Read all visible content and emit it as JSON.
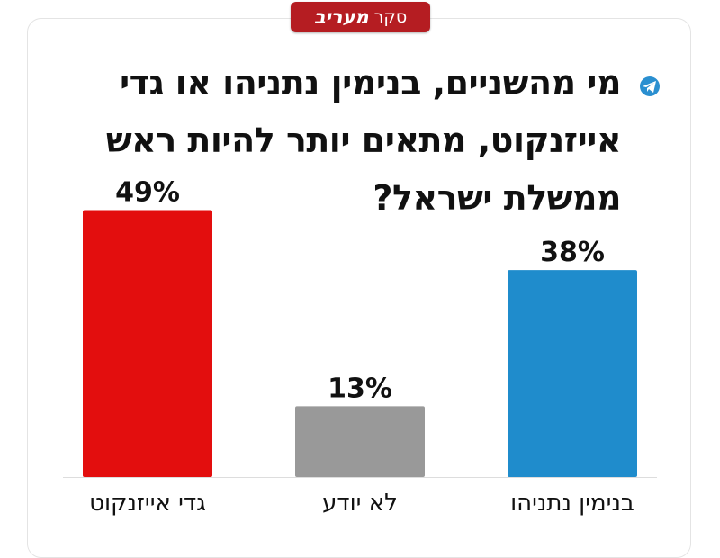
{
  "badge": {
    "prefix": "סקר",
    "brand": "מעריב"
  },
  "title": "מי מהשניים, בנימין נתניהו או גדי אייזנקוט, מתאים יותר להיות ראש ממשלת ישראל?",
  "colors": {
    "red": "#e30e0e",
    "gray": "#999999",
    "blue": "#1f8ccc",
    "badge": "#b51d22"
  },
  "icon": "telegram-icon",
  "chart_data": {
    "type": "bar",
    "categories": [
      "גדי אייזנקוט",
      "לא יודע",
      "בנימין נתניהו"
    ],
    "values": [
      49,
      13,
      38
    ],
    "value_labels": [
      "49%",
      "13%",
      "38%"
    ],
    "colors": [
      "#e30e0e",
      "#999999",
      "#1f8ccc"
    ],
    "ylim": [
      0,
      100
    ]
  }
}
